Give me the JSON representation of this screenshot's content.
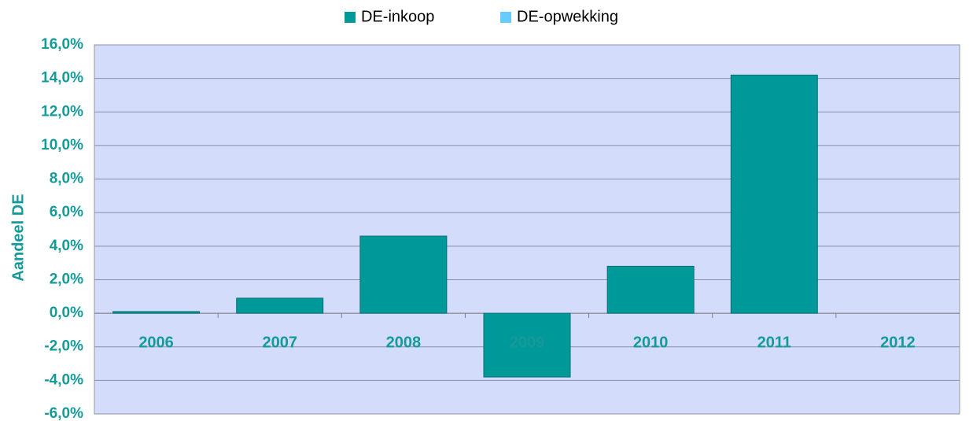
{
  "chart_data": {
    "type": "bar",
    "y_label": "Aandeel DE",
    "categories": [
      "2006",
      "2007",
      "2008",
      "2009",
      "2010",
      "2011",
      "2012"
    ],
    "series": [
      {
        "name": "DE-inkoop",
        "color": "#009999",
        "values": [
          0.1,
          0.9,
          4.6,
          -3.8,
          2.8,
          14.2,
          null
        ]
      },
      {
        "name": "DE-opwekking",
        "color": "#66ccff",
        "values": [
          null,
          null,
          null,
          null,
          null,
          null,
          null
        ]
      }
    ],
    "ylim": [
      -6,
      16
    ],
    "yticks": [
      {
        "value": -6,
        "label": "-6,0%"
      },
      {
        "value": -4,
        "label": "-4,0%"
      },
      {
        "value": -2,
        "label": "-2,0%"
      },
      {
        "value": 0,
        "label": "0,0%"
      },
      {
        "value": 2,
        "label": "2,0%"
      },
      {
        "value": 4,
        "label": "4,0%"
      },
      {
        "value": 6,
        "label": "6,0%"
      },
      {
        "value": 8,
        "label": "8,0%"
      },
      {
        "value": 10,
        "label": "10,0%"
      },
      {
        "value": 12,
        "label": "12,0%"
      },
      {
        "value": 14,
        "label": "14,0%"
      },
      {
        "value": 16,
        "label": "16,0%"
      }
    ],
    "grid": true,
    "legend": "top"
  }
}
